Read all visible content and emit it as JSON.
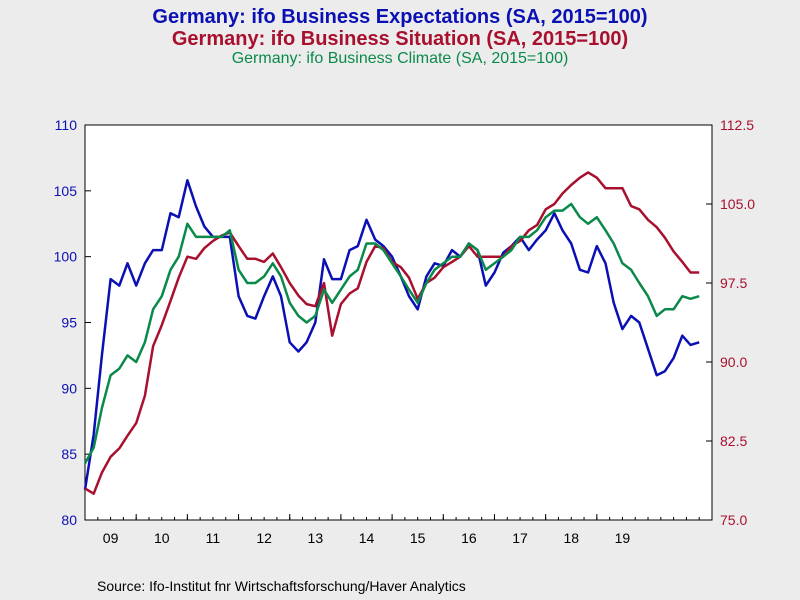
{
  "chart_data": {
    "type": "line",
    "titles": [
      {
        "text": "Germany: ifo Business Expectations (SA, 2015=100)",
        "color": "#0b10b4"
      },
      {
        "text": "Germany: ifo Business Situation (SA, 2015=100)",
        "color": "#a8102e"
      },
      {
        "text": "Germany: ifo Business Climate (SA, 2015=100)",
        "color": "#0a8a4a"
      }
    ],
    "x_labels": [
      "09",
      "10",
      "11",
      "12",
      "13",
      "14",
      "15",
      "16",
      "17",
      "18",
      "19"
    ],
    "left_axis": {
      "range": [
        80,
        110
      ],
      "ticks": [
        80,
        85,
        90,
        95,
        100,
        105,
        110
      ],
      "color": "#0b10b4"
    },
    "right_axis": {
      "range": [
        75.0,
        112.5
      ],
      "ticks": [
        "75.0",
        "82.5",
        "90.0",
        "97.5",
        "105.0",
        "112.5"
      ],
      "color": "#a8102e"
    },
    "series": [
      {
        "name": "Germany: ifo Business Expectations (SA, 2015=100)",
        "axis": "left",
        "color": "#0b10b4",
        "points": [
          [
            2009.0,
            82.3
          ],
          [
            2009.17,
            86.5
          ],
          [
            2009.33,
            92.5
          ],
          [
            2009.5,
            98.3
          ],
          [
            2009.67,
            97.8
          ],
          [
            2009.83,
            99.5
          ],
          [
            2010.0,
            97.8
          ],
          [
            2010.17,
            99.5
          ],
          [
            2010.33,
            100.5
          ],
          [
            2010.5,
            100.5
          ],
          [
            2010.67,
            103.3
          ],
          [
            2010.83,
            103.0
          ],
          [
            2011.0,
            105.8
          ],
          [
            2011.17,
            103.8
          ],
          [
            2011.33,
            102.3
          ],
          [
            2011.5,
            101.5
          ],
          [
            2011.67,
            101.5
          ],
          [
            2011.83,
            101.5
          ],
          [
            2012.0,
            97.0
          ],
          [
            2012.17,
            95.5
          ],
          [
            2012.33,
            95.3
          ],
          [
            2012.5,
            97.0
          ],
          [
            2012.67,
            98.5
          ],
          [
            2012.83,
            97.0
          ],
          [
            2013.0,
            93.5
          ],
          [
            2013.17,
            92.8
          ],
          [
            2013.33,
            93.5
          ],
          [
            2013.5,
            95.0
          ],
          [
            2013.67,
            99.8
          ],
          [
            2013.83,
            98.3
          ],
          [
            2014.0,
            98.3
          ],
          [
            2014.17,
            100.5
          ],
          [
            2014.33,
            100.8
          ],
          [
            2014.5,
            102.8
          ],
          [
            2014.67,
            101.3
          ],
          [
            2014.83,
            100.8
          ],
          [
            2015.0,
            100.0
          ],
          [
            2015.17,
            98.5
          ],
          [
            2015.33,
            97.0
          ],
          [
            2015.5,
            96.0
          ],
          [
            2015.67,
            98.5
          ],
          [
            2015.83,
            99.5
          ],
          [
            2016.0,
            99.3
          ],
          [
            2016.17,
            100.5
          ],
          [
            2016.33,
            100.0
          ],
          [
            2016.5,
            101.0
          ],
          [
            2016.67,
            100.5
          ],
          [
            2016.83,
            97.8
          ],
          [
            2017.0,
            98.8
          ],
          [
            2017.17,
            100.3
          ],
          [
            2017.33,
            100.8
          ],
          [
            2017.5,
            101.5
          ],
          [
            2017.67,
            100.5
          ],
          [
            2017.83,
            101.3
          ],
          [
            2018.0,
            102.0
          ],
          [
            2018.17,
            103.3
          ],
          [
            2018.33,
            102.0
          ],
          [
            2018.5,
            101.0
          ],
          [
            2018.67,
            99.0
          ],
          [
            2018.83,
            98.8
          ],
          [
            2019.0,
            100.8
          ],
          [
            2019.17,
            99.5
          ],
          [
            2019.33,
            96.5
          ],
          [
            2019.5,
            94.5
          ],
          [
            2019.67,
            95.5
          ],
          [
            2019.83,
            95.0
          ],
          [
            2020.0,
            93.0
          ],
          [
            2020.17,
            91.0
          ],
          [
            2020.33,
            91.3
          ],
          [
            2020.5,
            92.3
          ],
          [
            2020.67,
            94.0
          ],
          [
            2020.83,
            93.3
          ],
          [
            2021.0,
            93.5
          ]
        ]
      },
      {
        "name": "Germany: ifo Business Situation (SA, 2015=100)",
        "axis": "right",
        "color": "#a8102e",
        "points": [
          [
            2009.0,
            78.0
          ],
          [
            2009.17,
            77.5
          ],
          [
            2009.33,
            79.5
          ],
          [
            2009.5,
            81.0
          ],
          [
            2009.67,
            81.8
          ],
          [
            2009.83,
            83.0
          ],
          [
            2010.0,
            84.2
          ],
          [
            2010.17,
            86.8
          ],
          [
            2010.33,
            91.5
          ],
          [
            2010.5,
            93.5
          ],
          [
            2010.67,
            95.8
          ],
          [
            2010.83,
            98.0
          ],
          [
            2011.0,
            100.0
          ],
          [
            2011.17,
            99.8
          ],
          [
            2011.33,
            100.8
          ],
          [
            2011.5,
            101.5
          ],
          [
            2011.67,
            102.0
          ],
          [
            2011.83,
            102.3
          ],
          [
            2012.0,
            101.0
          ],
          [
            2012.17,
            99.8
          ],
          [
            2012.33,
            99.8
          ],
          [
            2012.5,
            99.5
          ],
          [
            2012.67,
            100.3
          ],
          [
            2012.83,
            99.0
          ],
          [
            2013.0,
            97.5
          ],
          [
            2013.17,
            96.3
          ],
          [
            2013.33,
            95.5
          ],
          [
            2013.5,
            95.3
          ],
          [
            2013.67,
            97.5
          ],
          [
            2013.83,
            92.5
          ],
          [
            2014.0,
            95.5
          ],
          [
            2014.17,
            96.5
          ],
          [
            2014.33,
            97.0
          ],
          [
            2014.5,
            99.5
          ],
          [
            2014.67,
            101.0
          ],
          [
            2014.83,
            100.8
          ],
          [
            2015.0,
            99.5
          ],
          [
            2015.17,
            99.0
          ],
          [
            2015.33,
            98.0
          ],
          [
            2015.5,
            96.0
          ],
          [
            2015.67,
            97.5
          ],
          [
            2015.83,
            98.0
          ],
          [
            2016.0,
            99.0
          ],
          [
            2016.17,
            99.5
          ],
          [
            2016.33,
            100.0
          ],
          [
            2016.5,
            101.0
          ],
          [
            2016.67,
            100.0
          ],
          [
            2016.83,
            100.0
          ],
          [
            2017.0,
            100.0
          ],
          [
            2017.17,
            100.0
          ],
          [
            2017.33,
            101.0
          ],
          [
            2017.5,
            101.5
          ],
          [
            2017.67,
            102.5
          ],
          [
            2017.83,
            103.0
          ],
          [
            2018.0,
            104.5
          ],
          [
            2018.17,
            105.0
          ],
          [
            2018.33,
            106.0
          ],
          [
            2018.5,
            106.8
          ],
          [
            2018.67,
            107.5
          ],
          [
            2018.83,
            108.0
          ],
          [
            2019.0,
            107.5
          ],
          [
            2019.17,
            106.5
          ],
          [
            2019.33,
            106.5
          ],
          [
            2019.5,
            106.5
          ],
          [
            2019.67,
            104.8
          ],
          [
            2019.83,
            104.5
          ],
          [
            2020.0,
            103.5
          ],
          [
            2020.17,
            102.8
          ],
          [
            2020.33,
            101.8
          ],
          [
            2020.5,
            100.5
          ],
          [
            2020.67,
            99.5
          ],
          [
            2020.83,
            98.5
          ],
          [
            2021.0,
            98.5
          ]
        ]
      },
      {
        "name": "Germany: ifo Business Climate (SA, 2015=100)",
        "axis": "left",
        "color": "#0a8a4a",
        "points": [
          [
            2009.0,
            84.3
          ],
          [
            2009.17,
            85.5
          ],
          [
            2009.33,
            88.5
          ],
          [
            2009.5,
            91.0
          ],
          [
            2009.67,
            91.5
          ],
          [
            2009.83,
            92.5
          ],
          [
            2010.0,
            92.0
          ],
          [
            2010.17,
            93.5
          ],
          [
            2010.33,
            96.0
          ],
          [
            2010.5,
            97.0
          ],
          [
            2010.67,
            99.0
          ],
          [
            2010.83,
            100.0
          ],
          [
            2011.0,
            102.5
          ],
          [
            2011.17,
            101.5
          ],
          [
            2011.33,
            101.5
          ],
          [
            2011.5,
            101.5
          ],
          [
            2011.67,
            101.5
          ],
          [
            2011.83,
            102.0
          ],
          [
            2012.0,
            99.0
          ],
          [
            2012.17,
            98.0
          ],
          [
            2012.33,
            98.0
          ],
          [
            2012.5,
            98.5
          ],
          [
            2012.67,
            99.5
          ],
          [
            2012.83,
            98.5
          ],
          [
            2013.0,
            96.5
          ],
          [
            2013.17,
            95.5
          ],
          [
            2013.33,
            95.0
          ],
          [
            2013.5,
            95.5
          ],
          [
            2013.67,
            97.5
          ],
          [
            2013.83,
            96.5
          ],
          [
            2014.0,
            97.5
          ],
          [
            2014.17,
            98.5
          ],
          [
            2014.33,
            99.0
          ],
          [
            2014.5,
            101.0
          ],
          [
            2014.67,
            101.0
          ],
          [
            2014.83,
            100.5
          ],
          [
            2015.0,
            99.5
          ],
          [
            2015.17,
            98.5
          ],
          [
            2015.33,
            97.5
          ],
          [
            2015.5,
            96.5
          ],
          [
            2015.67,
            98.0
          ],
          [
            2015.83,
            99.0
          ],
          [
            2016.0,
            99.5
          ],
          [
            2016.17,
            100.0
          ],
          [
            2016.33,
            100.0
          ],
          [
            2016.5,
            101.0
          ],
          [
            2016.67,
            100.5
          ],
          [
            2016.83,
            99.0
          ],
          [
            2017.0,
            99.5
          ],
          [
            2017.17,
            100.0
          ],
          [
            2017.33,
            100.5
          ],
          [
            2017.5,
            101.5
          ],
          [
            2017.67,
            101.5
          ],
          [
            2017.83,
            102.0
          ],
          [
            2018.0,
            103.0
          ],
          [
            2018.17,
            103.5
          ],
          [
            2018.33,
            103.5
          ],
          [
            2018.5,
            104.0
          ],
          [
            2018.67,
            103.0
          ],
          [
            2018.83,
            102.5
          ],
          [
            2019.0,
            103.0
          ],
          [
            2019.17,
            102.0
          ],
          [
            2019.33,
            101.0
          ],
          [
            2019.5,
            99.5
          ],
          [
            2019.67,
            99.0
          ],
          [
            2019.83,
            98.0
          ],
          [
            2020.0,
            97.0
          ],
          [
            2020.17,
            95.5
          ],
          [
            2020.33,
            96.0
          ],
          [
            2020.5,
            96.0
          ],
          [
            2020.67,
            97.0
          ],
          [
            2020.83,
            96.8
          ],
          [
            2021.0,
            97.0
          ]
        ]
      }
    ],
    "x_range": [
      2009.0,
      2021.25
    ],
    "grid": false,
    "legend": "none"
  },
  "footer": {
    "source": "Source:  Ifo-Institut fnr Wirtschaftsforschung/Haver Analytics"
  }
}
